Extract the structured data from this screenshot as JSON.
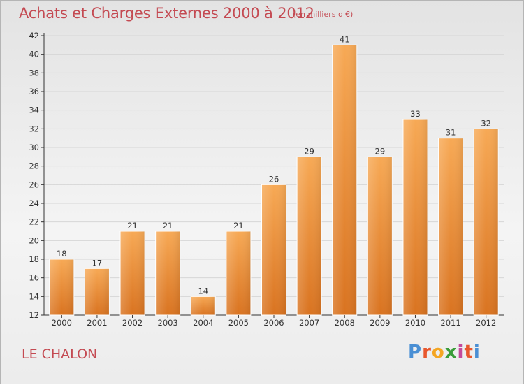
{
  "header": {
    "title": "Achats et Charges Externes 2000 à 2012",
    "subtitle": "(en milliers d'€)"
  },
  "footer": {
    "location": "LE CHALON",
    "logo_text": "Proxiti",
    "logo_colors": [
      "#4a8fd4",
      "#e8572d",
      "#f4a623",
      "#3a9c3a",
      "#c44a9c",
      "#e8572d",
      "#4a8fd4"
    ]
  },
  "colors": {
    "bar_top": "#f7a955",
    "bar_bottom": "#d97320",
    "title": "#c44a52",
    "grid": "#d6d6d6",
    "axis": "#333333"
  },
  "chart_data": {
    "type": "bar",
    "categories": [
      "2000",
      "2001",
      "2002",
      "2003",
      "2004",
      "2005",
      "2006",
      "2007",
      "2008",
      "2009",
      "2010",
      "2011",
      "2012"
    ],
    "values": [
      18,
      17,
      21,
      21,
      14,
      21,
      26,
      29,
      41,
      29,
      33,
      31,
      32
    ],
    "data_labels": [
      "18",
      "17",
      "21",
      "21",
      "14",
      "21",
      "26",
      "29",
      "41",
      "29",
      "33",
      "31",
      "32"
    ],
    "title": "Achats et Charges Externes 2000 à 2012",
    "xlabel": "",
    "ylabel": "",
    "ylim": [
      12,
      42
    ],
    "yticks": [
      12,
      14,
      16,
      18,
      20,
      22,
      24,
      26,
      28,
      30,
      32,
      34,
      36,
      38,
      40,
      42
    ],
    "grid": true
  }
}
